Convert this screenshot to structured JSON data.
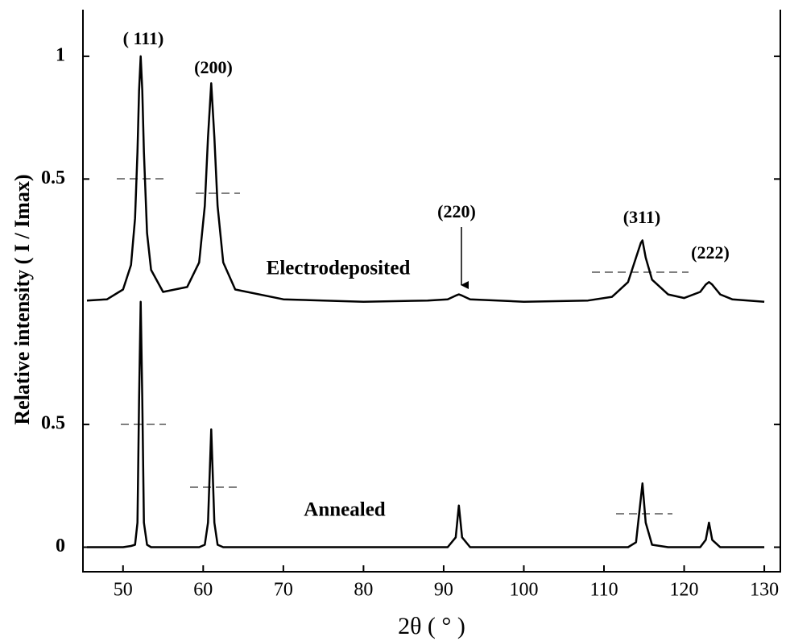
{
  "chart_data": {
    "type": "line",
    "xlabel": "2θ ( ° )",
    "ylabel": "Relative intensity ( I / Imax)",
    "x": [
      45.5,
      48,
      50,
      51,
      51.5,
      51.8,
      52.0,
      52.2,
      52.4,
      52.6,
      53,
      53.5,
      55,
      58,
      59.5,
      60.2,
      60.6,
      61,
      61.4,
      61.8,
      62.5,
      64,
      70,
      80,
      88,
      90.5,
      91.5,
      91.9,
      92.3,
      93.3,
      100,
      108,
      111,
      113,
      114,
      114.6,
      114.8,
      115.2,
      116,
      118,
      120,
      122,
      122.7,
      123.1,
      123.5,
      124.5,
      126,
      130
    ],
    "series": [
      {
        "name": "Electrodeposited",
        "color": "#000000",
        "values": [
          1.005,
          1.01,
          1.05,
          1.15,
          1.34,
          1.61,
          1.86,
          2.0,
          1.86,
          1.61,
          1.28,
          1.13,
          1.04,
          1.06,
          1.16,
          1.39,
          1.67,
          1.89,
          1.67,
          1.39,
          1.16,
          1.05,
          1.01,
          1.0,
          1.005,
          1.01,
          1.025,
          1.03,
          1.025,
          1.01,
          1.0,
          1.005,
          1.02,
          1.08,
          1.18,
          1.24,
          1.25,
          1.18,
          1.09,
          1.03,
          1.015,
          1.04,
          1.07,
          1.08,
          1.07,
          1.03,
          1.01,
          1.0
        ]
      },
      {
        "name": "Annealed",
        "color": "#000000",
        "values": [
          0,
          0,
          0,
          0.005,
          0.01,
          0.1,
          0.6,
          1.0,
          0.6,
          0.1,
          0.01,
          0,
          0,
          0,
          0,
          0.01,
          0.1,
          0.48,
          0.1,
          0.01,
          0,
          0,
          0,
          0,
          0,
          0,
          0.04,
          0.17,
          0.04,
          0,
          0,
          0,
          0,
          0,
          0.02,
          0.2,
          0.26,
          0.1,
          0.01,
          0,
          0,
          0,
          0.03,
          0.1,
          0.03,
          0,
          0,
          0
        ]
      }
    ],
    "annotations": [
      "( 111)",
      "(200)",
      "(220)",
      "(311)",
      "(222)"
    ],
    "xlim": [
      45,
      132
    ],
    "xticks": [
      50,
      60,
      70,
      80,
      90,
      100,
      110,
      120,
      130
    ],
    "ylim": [
      -0.1,
      2.19
    ],
    "yticks": [
      0,
      0.5,
      {
        "value": 1.5,
        "label": "0.5"
      },
      {
        "value": 2,
        "label": "1"
      }
    ]
  }
}
